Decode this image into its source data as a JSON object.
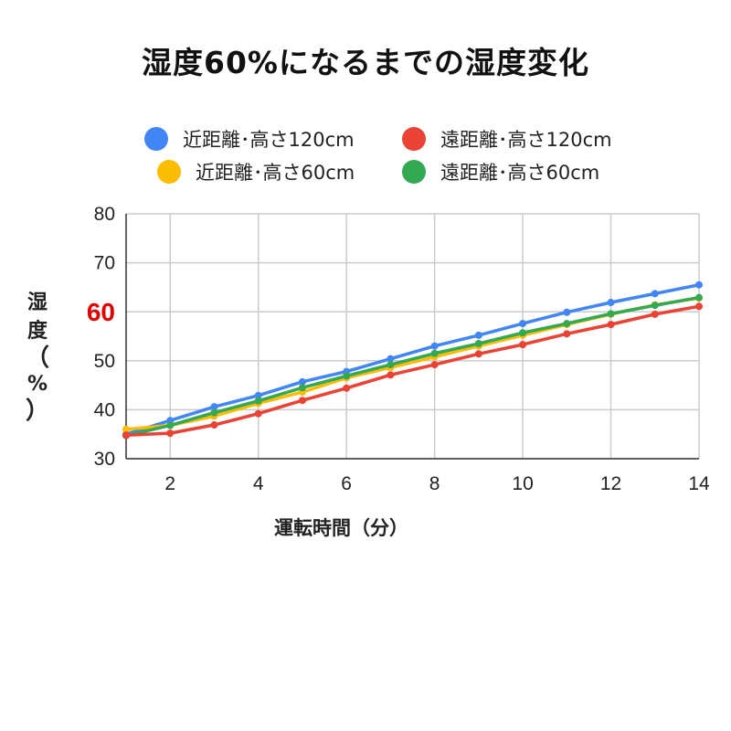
{
  "chart_data": {
    "type": "line",
    "title": "湿度60%になるまでの湿度変化",
    "xlabel": "運転時間（分）",
    "ylabel": {
      "text": "湿度",
      "paren_open": "（",
      "unit": "%",
      "paren_close": "）"
    },
    "xlim": [
      1,
      14
    ],
    "ylim": [
      30,
      80
    ],
    "x_ticks": [
      2,
      4,
      6,
      8,
      10,
      12,
      14
    ],
    "y_ticks": [
      30,
      40,
      50,
      60,
      70,
      80
    ],
    "highlight_y_tick": 60,
    "highlight_color": "#e00000",
    "grid": true,
    "legend_position": "top",
    "x": [
      1,
      2,
      3,
      4,
      5,
      6,
      7,
      8,
      9,
      10,
      11,
      12,
      13,
      14
    ],
    "series": [
      {
        "name": "近距離･高さ120cm",
        "color": "#4285f4",
        "values": [
          35.0,
          37.8,
          40.6,
          42.9,
          45.7,
          47.8,
          50.4,
          53.0,
          55.2,
          57.6,
          59.9,
          61.9,
          63.7,
          65.5
        ]
      },
      {
        "name": "遠距離･高さ120cm",
        "color": "#ea4335",
        "values": [
          34.8,
          35.2,
          36.9,
          39.2,
          41.9,
          44.4,
          47.1,
          49.2,
          51.4,
          53.3,
          55.5,
          57.4,
          59.5,
          61.1
        ]
      },
      {
        "name": "近距離･高さ60cm",
        "color": "#fbbc04",
        "values": [
          36.0,
          36.8,
          38.7,
          41.3,
          43.6,
          46.5,
          48.6,
          50.8,
          53.0,
          55.2,
          57.4,
          59.5,
          61.4,
          62.8
        ]
      },
      {
        "name": "遠距離･高さ60cm",
        "color": "#34a853",
        "values": [
          34.7,
          36.8,
          39.4,
          41.8,
          44.5,
          46.9,
          49.2,
          51.5,
          53.5,
          55.7,
          57.6,
          59.6,
          61.3,
          62.9
        ]
      }
    ]
  }
}
